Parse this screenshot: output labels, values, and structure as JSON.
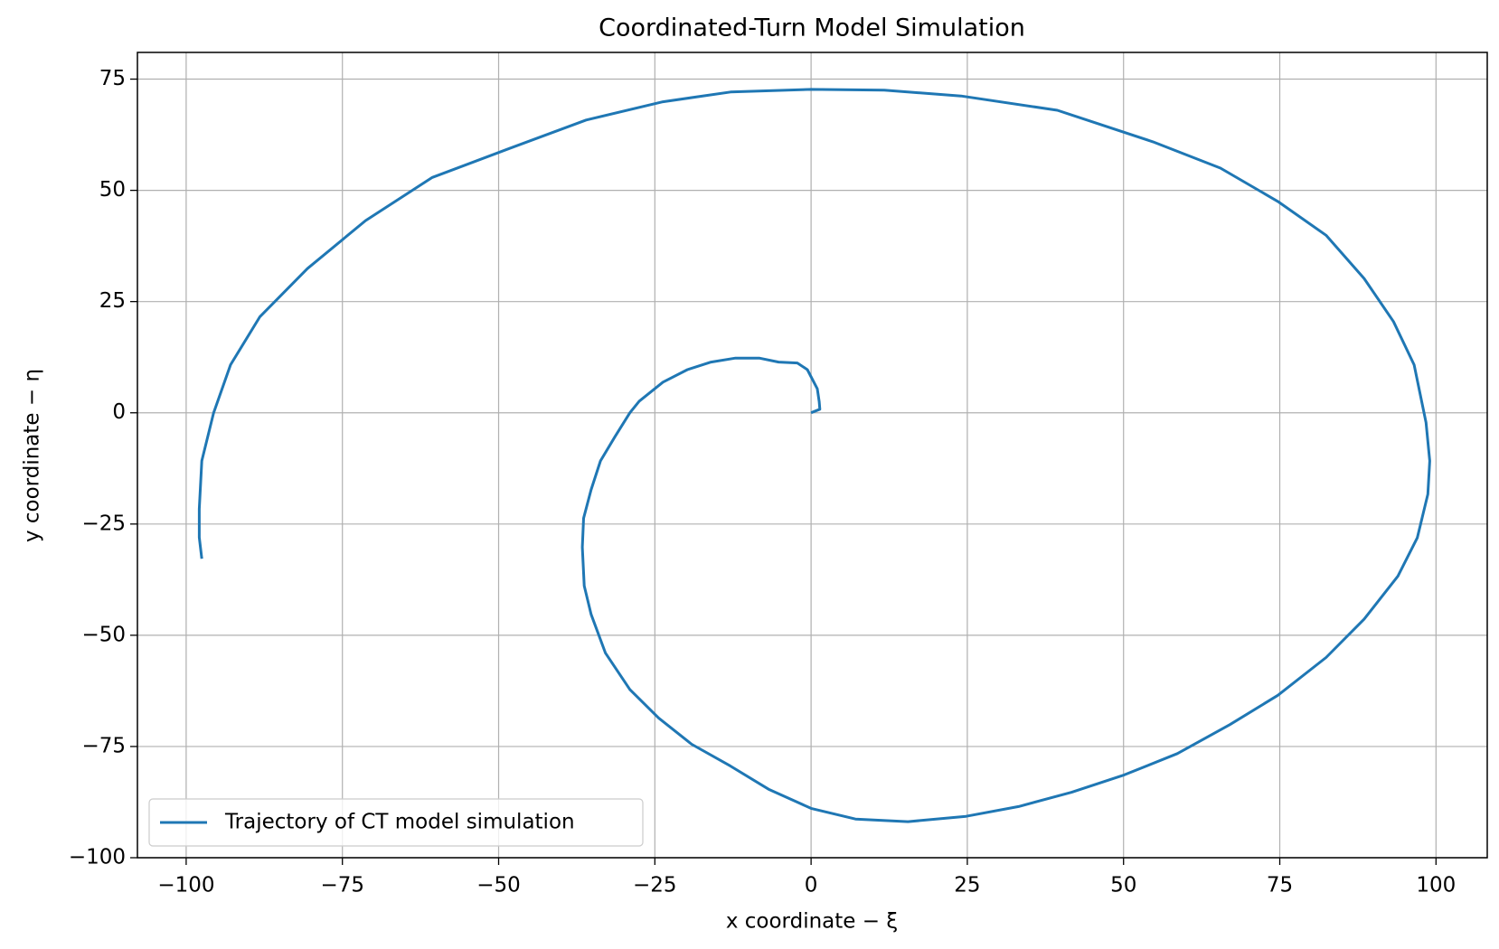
{
  "chart_data": {
    "type": "line",
    "title": "Coordinated-Turn Model Simulation",
    "x_label": "x coordinate − ξ",
    "y_label": "y coordinate − η",
    "series": [
      {
        "name": "Trajectory of CT model simulation",
        "color": "#1f77b4",
        "x": [
          0,
          1.4,
          1.3,
          1.0,
          -0.6,
          -2.2,
          -5.2,
          -8.3,
          -12.1,
          -16.0,
          -19.8,
          -23.7,
          -27.5,
          -29.0,
          -31.4,
          -33.7,
          -35.2,
          -36.4,
          -36.6,
          -36.3,
          -35.2,
          -32.9,
          -29.0,
          -24.4,
          -19.1,
          -12.9,
          -6.8,
          0,
          7.1,
          15.5,
          24.8,
          33.2,
          41.7,
          50.1,
          58.6,
          67.0,
          74.7,
          82.4,
          88.5,
          93.9,
          97.0,
          98.7,
          99.0,
          98.4,
          96.5,
          93.2,
          88.5,
          82.4,
          74.7,
          65.5,
          54.7,
          39.4,
          24.0,
          11.7,
          0,
          -12.9,
          -23.7,
          -36.0,
          -48.3,
          -60.6,
          -71.3,
          -80.6,
          -88.2,
          -92.9,
          -95.6,
          -97.5,
          -97.9,
          -97.9,
          -97.5
        ],
        "values": [
          0,
          0.8,
          2.5,
          5.4,
          9.7,
          11.2,
          11.4,
          12.3,
          12.3,
          11.4,
          9.7,
          6.9,
          2.6,
          0,
          -5.4,
          -10.8,
          -17.3,
          -23.7,
          -30.2,
          -38.9,
          -45.3,
          -54.0,
          -62.2,
          -68.6,
          -74.5,
          -79.4,
          -84.6,
          -88.9,
          -91.3,
          -91.9,
          -90.7,
          -88.5,
          -85.3,
          -81.4,
          -76.6,
          -70.1,
          -63.5,
          -55.0,
          -46.4,
          -36.7,
          -28.1,
          -18.3,
          -10.8,
          -2.2,
          10.8,
          20.5,
          30.2,
          39.9,
          47.5,
          55.0,
          60.9,
          68.0,
          71.2,
          72.5,
          72.7,
          72.1,
          69.9,
          65.8,
          59.4,
          52.9,
          43.2,
          32.4,
          21.6,
          10.8,
          0,
          -10.8,
          -21.6,
          -28.0,
          -32.8
        ]
      }
    ],
    "xlim": [
      -107.8,
      108.2
    ],
    "ylim": [
      -100,
      81
    ],
    "xticks": [
      {
        "value": -100,
        "label": "−100"
      },
      {
        "value": -75,
        "label": "−75"
      },
      {
        "value": -50,
        "label": "−50"
      },
      {
        "value": -25,
        "label": "−25"
      },
      0,
      25,
      50,
      75,
      100
    ],
    "yticks": [
      {
        "value": -100,
        "label": "−100"
      },
      {
        "value": -75,
        "label": "−75"
      },
      {
        "value": -50,
        "label": "−50"
      },
      {
        "value": -25,
        "label": "−25"
      },
      0,
      25,
      50,
      75
    ],
    "grid": true,
    "legend": "lower left"
  }
}
